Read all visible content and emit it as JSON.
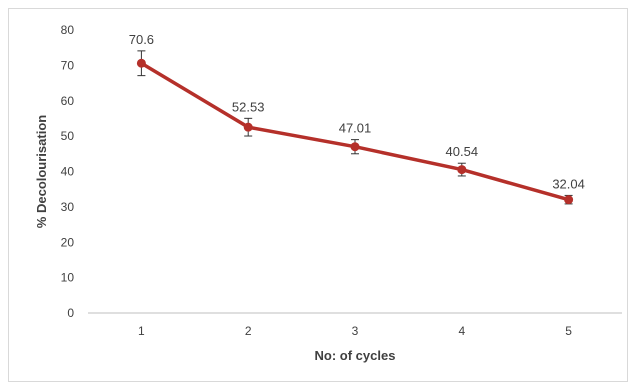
{
  "chart_data": {
    "type": "line",
    "title": "",
    "xlabel": "No: of cycles",
    "ylabel": "% Decolourisation",
    "categories": [
      "1",
      "2",
      "3",
      "4",
      "5"
    ],
    "series": [
      {
        "values": [
          70.6,
          52.53,
          47.01,
          40.54,
          32.04
        ],
        "error": [
          3.5,
          2.5,
          2.0,
          1.8,
          1.2
        ],
        "data_labels": [
          "70.6",
          "52.53",
          "47.01",
          "40.54",
          "32.04"
        ],
        "color": "#b5302a",
        "marker": "circle"
      }
    ],
    "ylim": [
      0,
      80
    ],
    "yticks": [
      "0",
      "10",
      "20",
      "30",
      "40",
      "50",
      "60",
      "70",
      "80"
    ],
    "grid": false,
    "legend": "none"
  }
}
